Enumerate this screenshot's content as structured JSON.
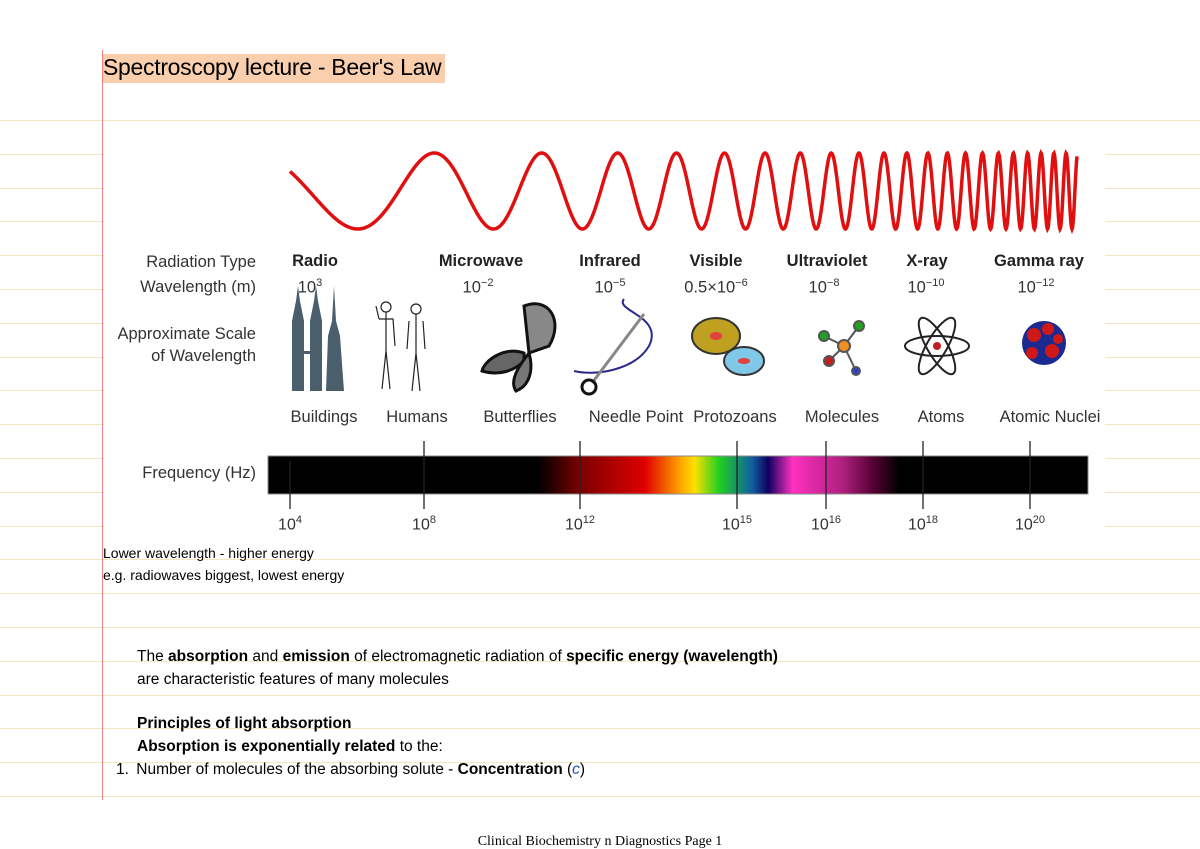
{
  "title": "Spectroscopy lecture - Beer's Law",
  "figure": {
    "row_headers": {
      "radiation_type": "Radiation Type",
      "wavelength": "Wavelength (m)",
      "scale_1": "Approximate Scale",
      "scale_2": "of Wavelength",
      "frequency": "Frequency (Hz)"
    },
    "radiation_types": [
      "Radio",
      "Microwave",
      "Infrared",
      "Visible",
      "Ultraviolet",
      "X-ray",
      "Gamma ray"
    ],
    "wavelengths": [
      {
        "base": "10",
        "exp": "3"
      },
      {
        "base": "10",
        "exp": "−2"
      },
      {
        "base": "10",
        "exp": "−5"
      },
      {
        "base": "0.5×10",
        "exp": "−6"
      },
      {
        "base": "10",
        "exp": "−8"
      },
      {
        "base": "10",
        "exp": "−10"
      },
      {
        "base": "10",
        "exp": "−12"
      }
    ],
    "scale_objects": [
      "Buildings",
      "Humans",
      "Butterflies",
      "Needle Point",
      "Protozoans",
      "Molecules",
      "Atoms",
      "Atomic Nuclei"
    ],
    "frequencies": [
      {
        "base": "10",
        "exp": "4"
      },
      {
        "base": "10",
        "exp": "8"
      },
      {
        "base": "10",
        "exp": "12"
      },
      {
        "base": "10",
        "exp": "15"
      },
      {
        "base": "10",
        "exp": "16"
      },
      {
        "base": "10",
        "exp": "18"
      },
      {
        "base": "10",
        "exp": "20"
      }
    ],
    "wave_color": "#e01010"
  },
  "notes": [
    "Lower wavelength - higher energy",
    "e.g. radiowaves biggest, lowest energy"
  ],
  "body": {
    "p1_a": "The ",
    "p1_b": "absorption",
    "p1_c": " and ",
    "p1_d": "emission",
    "p1_e": " of electromagnetic radiation of ",
    "p1_f": "specific energy (wavelength)",
    "p2": "are characteristic features of many molecules",
    "heading": "Principles of light absorption",
    "p3_a": "Absorption is exponentially related",
    "p3_b": " to the:",
    "list_num": "1.",
    "li_a": "Number of molecules of the absorbing solute - ",
    "li_b": "Concentration",
    "li_c": " (",
    "li_d": "c",
    "li_e": ")"
  },
  "footer": "Clinical Biochemistry n Diagnostics Page 1"
}
